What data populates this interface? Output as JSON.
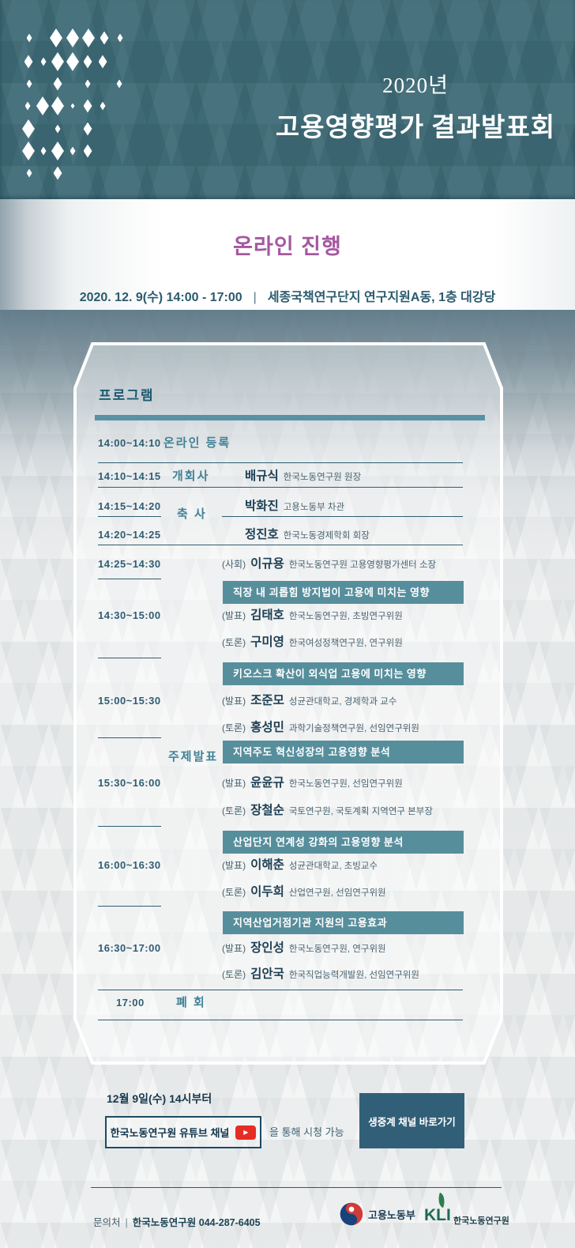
{
  "header": {
    "year": "2020년",
    "title": "고용영향평가 결과발표회"
  },
  "info": {
    "mode": "온라인 진행",
    "datetime": "2020. 12. 9(수) 14:00 - 17:00",
    "divider": "|",
    "venue": "세종국책연구단지 연구지원A동, 1층 대강당"
  },
  "program": {
    "title": "프로그램",
    "opening": [
      {
        "time": "14:00~14:10",
        "label": "온라인 등록"
      },
      {
        "time": "14:10~14:15",
        "role": "개회사",
        "name": "배규식",
        "desc": "한국노동연구원 원장"
      },
      {
        "time": "14:15~14:20",
        "name": "박화진",
        "desc": "고용노동부 차관"
      },
      {
        "time": "14:20~14:25",
        "name": "정진호",
        "desc": "한국노동경제학회 회장"
      },
      {
        "time": "14:25~14:30",
        "prefix": "(사회)",
        "name": "이규용",
        "desc": "한국노동연구원 고용영향평가센터 소장"
      }
    ],
    "congratulatory_label": "축 사",
    "session_group_label": "주제발표",
    "sessions": [
      {
        "time": "14:30~15:00",
        "topic": "직장 내 괴롭힘 방지법이 고용에 미치는 영향",
        "presenter": {
          "prefix": "(발표)",
          "name": "김태호",
          "desc": "한국노동연구원, 초빙연구위원"
        },
        "discussant": {
          "prefix": "(토론)",
          "name": "구미영",
          "desc": "한국여성정책연구원, 연구위원"
        }
      },
      {
        "time": "15:00~15:30",
        "topic": "키오스크 확산이 외식업 고용에 미치는 영향",
        "presenter": {
          "prefix": "(발표)",
          "name": "조준모",
          "desc": "성균관대학교, 경제학과 교수"
        },
        "discussant": {
          "prefix": "(토론)",
          "name": "홍성민",
          "desc": "과학기술정책연구원, 선임연구위원"
        }
      },
      {
        "time": "15:30~16:00",
        "topic": "지역주도 혁신성장의 고용영향 분석",
        "presenter": {
          "prefix": "(발표)",
          "name": "윤윤규",
          "desc": "한국노동연구원, 선임연구위원"
        },
        "discussant": {
          "prefix": "(토론)",
          "name": "장철순",
          "desc": "국토연구원, 국토계획 지역연구 본부장"
        }
      },
      {
        "time": "16:00~16:30",
        "topic": "산업단지 연계성 강화의 고용영향 분석",
        "presenter": {
          "prefix": "(발표)",
          "name": "이해춘",
          "desc": "성균관대학교, 초빙교수"
        },
        "discussant": {
          "prefix": "(토론)",
          "name": "이두희",
          "desc": "산업연구원, 선임연구위원"
        }
      },
      {
        "time": "16:30~17:00",
        "topic": "지역산업거점기관 지원의 고용효과",
        "presenter": {
          "prefix": "(발표)",
          "name": "장인성",
          "desc": "한국노동연구원, 연구위원"
        },
        "discussant": {
          "prefix": "(토론)",
          "name": "김안국",
          "desc": "한국직업능력개발원, 선임연구위원"
        }
      }
    ],
    "closing": {
      "time": "17:00",
      "label": "폐 회"
    }
  },
  "cta": {
    "schedule": "12월 9일(수) 14시부터",
    "channel_box_label": "한국노동연구원 유튜브 채널",
    "watch_suffix": "을 통해 시청 가능",
    "live_button_label": "생중계 채널 바로가기"
  },
  "footer": {
    "contact_label": "문의처",
    "divider": "|",
    "contact_value": "한국노동연구원 044-287-6405",
    "moel_name": "고용노동부",
    "kli_acronym": "KLI",
    "kli_name": "한국노동연구원"
  },
  "icons": {
    "youtube_play": "▶",
    "moel_emblem": "taegeuk-swirl",
    "kli_leaf": "leaf"
  },
  "colors": {
    "header_bg": "#3e6a76",
    "accent_bar": "#5793a4",
    "session_banner": "#578e9c",
    "online_magenta": "#a558a0",
    "dark_teal": "#2a5a6e",
    "live_button_bg": "#325f78",
    "youtube_red": "#e62d24",
    "kli_green": "#1e6a50",
    "moel_blue": "#16437c",
    "moel_red": "#d03c36"
  }
}
